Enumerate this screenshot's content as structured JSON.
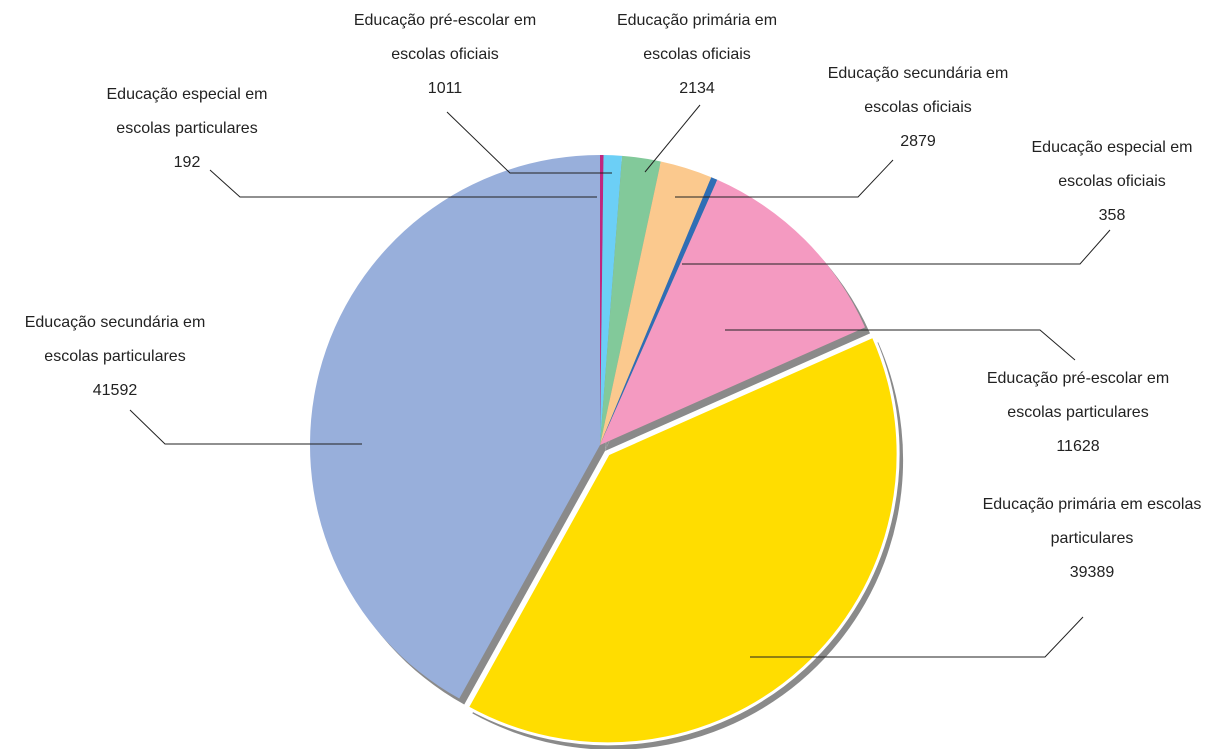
{
  "chart_data": {
    "type": "pie",
    "categories": [
      "Educação especial em escolas particulares",
      "Educação pré-escolar em escolas oficiais",
      "Educação primária em escolas oficiais",
      "Educação secundária em escolas oficiais",
      "Educação especial em escolas oficiais",
      "Educação pré-escolar em escolas particulares",
      "Educação primária em escolas particulares",
      "Educação secundária em escolas particulares"
    ],
    "values": [
      192,
      1011,
      2134,
      2879,
      358,
      11628,
      39389,
      41592
    ],
    "colors": [
      "#c0267e",
      "#6ccff6",
      "#82c99a",
      "#fbc98e",
      "#2f6eb5",
      "#f49ac1",
      "#ffdd00",
      "#98afdb"
    ],
    "exploded": "Educação primária em escolas particulares"
  }
}
